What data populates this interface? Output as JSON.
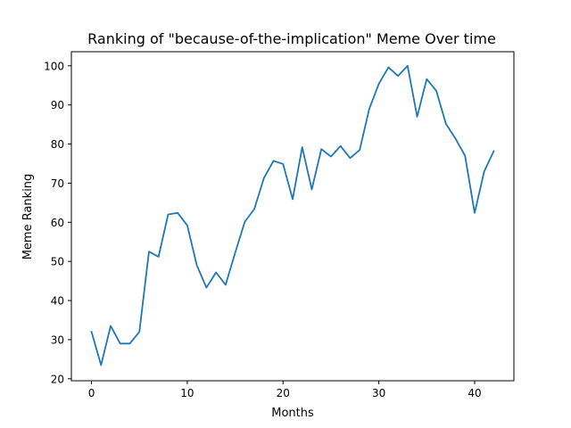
{
  "chart_data": {
    "type": "line",
    "title": "Ranking of \"because-of-the-implication\" Meme Over time",
    "xlabel": "Months",
    "ylabel": "Meme Ranking",
    "xlim": [
      -2.1,
      44.1
    ],
    "ylim": [
      19.5,
      103.6
    ],
    "xticks": [
      0,
      10,
      20,
      30,
      40
    ],
    "yticks": [
      20,
      30,
      40,
      50,
      60,
      70,
      80,
      90,
      100
    ],
    "grid": false,
    "legend": "none",
    "line_color": "#1f77b4",
    "series": [
      {
        "x": [
          0,
          1,
          2,
          3,
          4,
          5,
          6,
          7,
          8,
          9,
          10,
          11,
          12,
          13,
          14,
          15,
          16,
          17,
          18,
          19,
          20,
          21,
          22,
          23,
          24,
          25,
          26,
          27,
          28,
          29,
          30,
          31,
          32,
          33,
          34,
          35,
          36,
          37,
          38,
          39,
          40,
          41,
          42
        ],
        "values": [
          32,
          23.5,
          33.5,
          29,
          29,
          32,
          52.5,
          51.2,
          62,
          62.4,
          59.2,
          49,
          43.3,
          47.2,
          44,
          52.2,
          60.1,
          63.4,
          71.3,
          75.7,
          74.9,
          65.9,
          79.2,
          68.4,
          78.7,
          76.8,
          79.5,
          76.4,
          78.5,
          89,
          95.4,
          99.6,
          97.4,
          100,
          87,
          96.6,
          93.6,
          85.2,
          81.4,
          77,
          62.4,
          73,
          78.2
        ]
      }
    ]
  }
}
